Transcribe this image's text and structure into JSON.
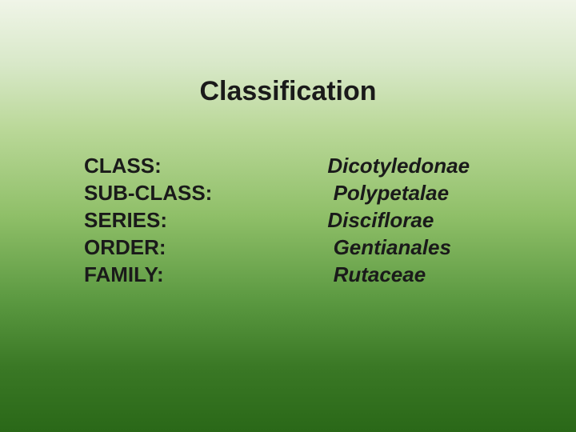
{
  "title": "Classification",
  "title_fontsize": 34,
  "body_fontsize": 26,
  "line_height": 34,
  "rows": [
    {
      "label": "CLASS:",
      "value": "Dicotyledonae",
      "value_indent": 0
    },
    {
      "label": "SUB-CLASS:",
      "value": "Polypetalae",
      "value_indent": 1
    },
    {
      "label": "SERIES:",
      "value": "Disciflorae",
      "value_indent": 0
    },
    {
      "label": "ORDER:",
      "value": "Gentianales",
      "value_indent": 1
    },
    {
      "label": "FAMILY:",
      "value": "Rutaceae",
      "value_indent": 1
    }
  ],
  "colors": {
    "text": "#1a1a1a",
    "bg_top": "#f0f5e8",
    "bg_bottom": "#2a6818"
  }
}
